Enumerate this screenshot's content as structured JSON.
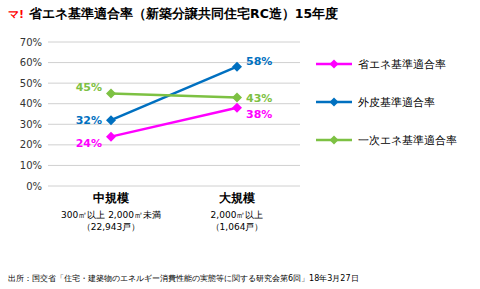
{
  "chart_data": {
    "type": "line",
    "title": "省エネ基準適合率（新築分譲共同住宅RC造）15年度",
    "annotations": [
      {
        "text": "マ!",
        "color": "red"
      },
      {
        "text": "出所：国交省「住宅・建築物のエネルギー消費性能の実態等に関する研究会第6回」18年3月27日"
      }
    ],
    "categories": [
      "中規模\n300㎡以上 2,000㎡未満\n（22,943戸）",
      "大規模\n2,000㎡以上\n（1,064戸）"
    ],
    "series": [
      {
        "name": "省エネ基準適合率",
        "color": "#FF00FF",
        "marker": "diamond",
        "values": [
          24,
          38
        ],
        "value_labels": [
          "24%",
          "38%"
        ]
      },
      {
        "name": "外皮基準適合率",
        "color": "#0070C0",
        "marker": "diamond",
        "values": [
          32,
          58
        ],
        "value_labels": [
          "32%",
          "58%"
        ]
      },
      {
        "name": "一次エネ基準適合率",
        "color": "#7DC143",
        "marker": "diamond",
        "values": [
          45,
          43
        ],
        "value_labels": [
          "45%",
          "43%"
        ]
      }
    ],
    "ylim": [
      0,
      70
    ],
    "yticks": [
      {
        "value": 0,
        "label": "0%"
      },
      {
        "value": 10,
        "label": "10%"
      },
      {
        "value": 20,
        "label": "20%"
      },
      {
        "value": 30,
        "label": "30%"
      },
      {
        "value": 40,
        "label": "40%"
      },
      {
        "value": 50,
        "label": "50%"
      },
      {
        "value": 60,
        "label": "60%"
      },
      {
        "value": 70,
        "label": "70%"
      }
    ],
    "grid": true,
    "legend": "right",
    "data_labels": true
  }
}
